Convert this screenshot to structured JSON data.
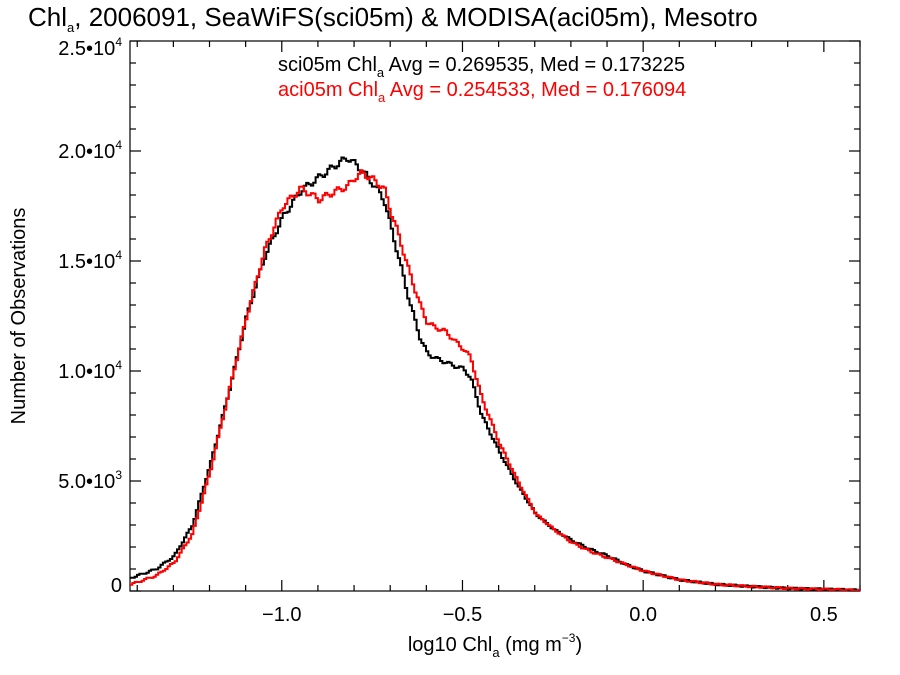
{
  "chart_data": {
    "type": "line",
    "title": {
      "main": "Chl",
      "sub": "a",
      "rest": ", 2006091, SeaWiFS(sci05m) & MODISA(aci05m), Mesotro"
    },
    "xlabel": {
      "pre": "log10 Chl",
      "sub": "a",
      "mid": " (mg m",
      "sup": "−3",
      "post": ")"
    },
    "ylabel": "Number of Observations",
    "xlim": [
      -1.42,
      0.6
    ],
    "ylim": [
      0,
      25000
    ],
    "x_ticks": [
      {
        "value": -1.0,
        "label": "−1.0"
      },
      {
        "value": -0.5,
        "label": "−0.5"
      },
      {
        "value": 0.0,
        "label": "0.0"
      },
      {
        "value": 0.5,
        "label": "0.5"
      }
    ],
    "y_ticks": [
      {
        "value": 0,
        "base": "0",
        "exp": ""
      },
      {
        "value": 5000,
        "base": "5.0•10",
        "exp": "3"
      },
      {
        "value": 10000,
        "base": "1.0•10",
        "exp": "4"
      },
      {
        "value": 15000,
        "base": "1.5•10",
        "exp": "4"
      },
      {
        "value": 20000,
        "base": "2.0•10",
        "exp": "4"
      },
      {
        "value": 25000,
        "base": "2.5•10",
        "exp": "4"
      }
    ],
    "annotations": [
      {
        "pre": "sci05m Chl",
        "sub": "a",
        "post": " Avg = 0.269535, Med = 0.173225",
        "color": "#000000"
      },
      {
        "pre": "aci05m Chl",
        "sub": "a",
        "post": " Avg = 0.254533, Med = 0.176094",
        "color": "#ff0000"
      }
    ],
    "series": [
      {
        "color": "#000000",
        "x": [
          -1.42,
          -1.35,
          -1.3,
          -1.25,
          -1.2,
          -1.15,
          -1.1,
          -1.05,
          -1.0,
          -0.95,
          -0.9,
          -0.85,
          -0.82,
          -0.8,
          -0.78,
          -0.75,
          -0.72,
          -0.7,
          -0.68,
          -0.65,
          -0.62,
          -0.6,
          -0.58,
          -0.55,
          -0.52,
          -0.5,
          -0.48,
          -0.45,
          -0.4,
          -0.35,
          -0.3,
          -0.25,
          -0.2,
          -0.15,
          -0.1,
          -0.05,
          0.0,
          0.05,
          0.1,
          0.2,
          0.3,
          0.4,
          0.5,
          0.6
        ],
        "y": [
          600,
          1000,
          1600,
          3000,
          5800,
          9000,
          12500,
          15200,
          17000,
          18200,
          18800,
          19400,
          19700,
          19400,
          19100,
          18500,
          17800,
          16500,
          15200,
          13200,
          11500,
          10800,
          10600,
          10400,
          10200,
          10100,
          9700,
          8000,
          6300,
          4800,
          3500,
          2800,
          2300,
          1900,
          1600,
          1200,
          900,
          700,
          500,
          300,
          200,
          120,
          80,
          30
        ]
      },
      {
        "color": "#ff0000",
        "x": [
          -1.42,
          -1.35,
          -1.3,
          -1.25,
          -1.2,
          -1.15,
          -1.1,
          -1.05,
          -1.0,
          -0.95,
          -0.9,
          -0.85,
          -0.82,
          -0.8,
          -0.78,
          -0.75,
          -0.72,
          -0.7,
          -0.68,
          -0.65,
          -0.62,
          -0.6,
          -0.58,
          -0.55,
          -0.52,
          -0.5,
          -0.48,
          -0.45,
          -0.4,
          -0.35,
          -0.3,
          -0.25,
          -0.2,
          -0.15,
          -0.1,
          -0.05,
          0.0,
          0.05,
          0.1,
          0.2,
          0.3,
          0.4,
          0.5,
          0.6
        ],
        "y": [
          300,
          700,
          1300,
          2600,
          5500,
          9000,
          12500,
          15500,
          17500,
          18300,
          17800,
          18200,
          18400,
          18800,
          19000,
          18700,
          18300,
          17200,
          16200,
          14500,
          13000,
          12200,
          12000,
          11800,
          11300,
          11000,
          10600,
          8800,
          6700,
          5000,
          3500,
          2800,
          2200,
          1800,
          1500,
          1200,
          900,
          700,
          500,
          300,
          200,
          120,
          80,
          30
        ]
      }
    ]
  }
}
